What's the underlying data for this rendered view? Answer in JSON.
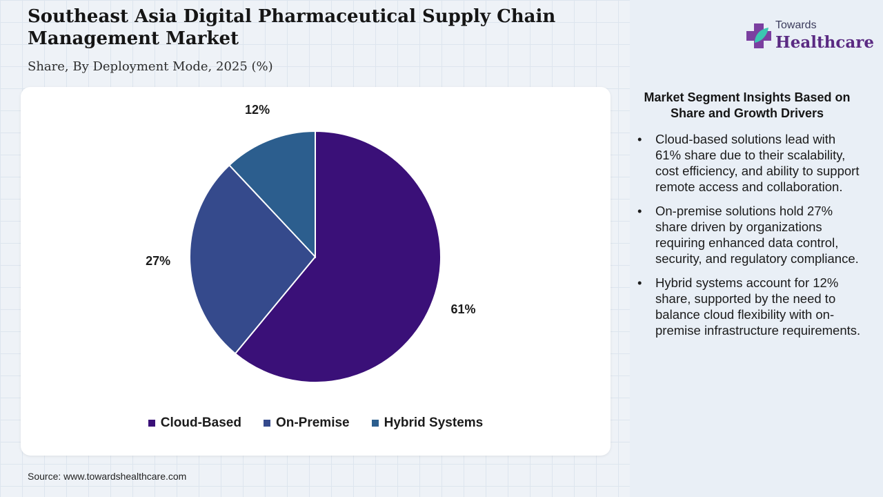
{
  "header": {
    "title": "Southeast Asia Digital Pharmaceutical Supply Chain Management Market",
    "subtitle": "Share, By Deployment Mode, 2025 (%)"
  },
  "logo": {
    "small": "Towards",
    "big": "Healthcare"
  },
  "chart_data": {
    "type": "pie",
    "categories": [
      "Cloud-Based",
      "On-Premise",
      "Hybrid Systems"
    ],
    "values": [
      61,
      27,
      12
    ],
    "data_labels": [
      "61%",
      "27%",
      "12%"
    ],
    "colors": [
      "#3a1078",
      "#354a8c",
      "#2c5e8e"
    ],
    "legend_position": "bottom"
  },
  "insights": {
    "title": "Market Segment Insights Based on Share and Growth Drivers",
    "bullets": [
      "Cloud-based solutions lead with 61% share due to their scalability, cost efficiency, and ability to support remote access and collaboration.",
      "On-premise solutions hold 27% share driven by organizations requiring enhanced data control, security, and regulatory compliance.",
      "Hybrid systems account for 12% share, supported by the need to balance cloud flexibility with on-premise infrastructure requirements."
    ]
  },
  "source": "Source: www.towardshealthcare.com"
}
